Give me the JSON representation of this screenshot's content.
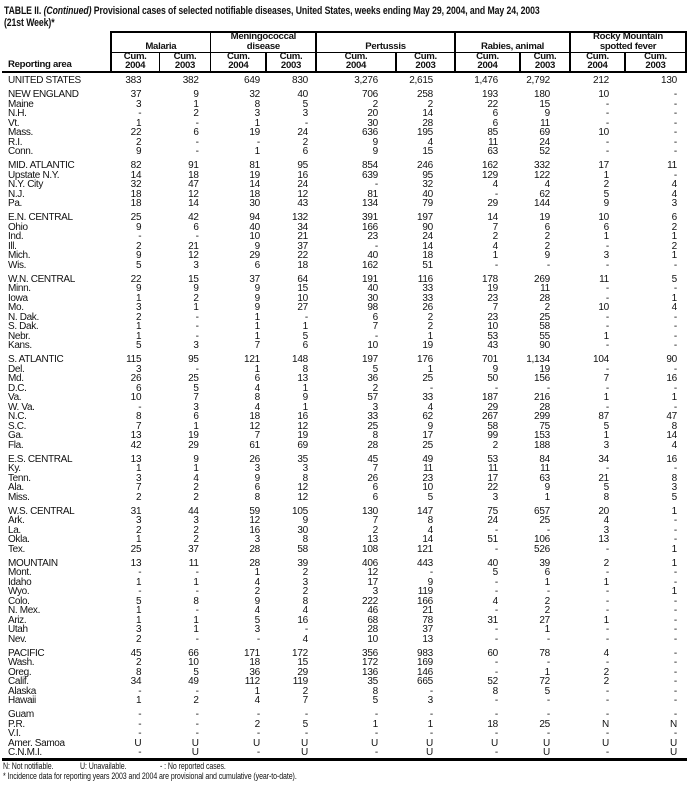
{
  "title": {
    "part1": "TABLE II.",
    "continued": "(Continued)",
    "part2": "Provisional cases of selected notifiable diseases, United States, weeks ending May 29, 2004, and May 24, 2003",
    "line2": "(21st Week)*"
  },
  "header": {
    "reporting_area": "Reporting area",
    "groups": [
      {
        "name_lines": [
          "Malaria"
        ]
      },
      {
        "name_lines": [
          "Meningococcal",
          "disease"
        ]
      },
      {
        "name_lines": [
          "Pertussis"
        ]
      },
      {
        "name_lines": [
          "Rabies, animal"
        ]
      },
      {
        "name_lines": [
          "Rocky Mountain",
          "spotted fever"
        ]
      }
    ],
    "subcolumns": [
      {
        "label": "Cum.",
        "year": "2004"
      },
      {
        "label": "Cum.",
        "year": "2003"
      }
    ]
  },
  "sections": [
    {
      "rows": [
        {
          "area": "UNITED STATES",
          "values": [
            "383",
            "382",
            "649",
            "830",
            "3,276",
            "2,615",
            "1,476",
            "2,792",
            "212",
            "130"
          ]
        }
      ]
    },
    {
      "rows": [
        {
          "area": "NEW ENGLAND",
          "values": [
            "37",
            "9",
            "32",
            "40",
            "706",
            "258",
            "193",
            "180",
            "10",
            "-"
          ]
        },
        {
          "area": "Maine",
          "values": [
            "3",
            "1",
            "8",
            "5",
            "2",
            "2",
            "22",
            "15",
            "-",
            "-"
          ]
        },
        {
          "area": "N.H.",
          "values": [
            "-",
            "2",
            "3",
            "3",
            "20",
            "14",
            "6",
            "9",
            "-",
            "-"
          ]
        },
        {
          "area": "Vt.",
          "values": [
            "1",
            "-",
            "1",
            "-",
            "30",
            "28",
            "6",
            "11",
            "-",
            "-"
          ]
        },
        {
          "area": "Mass.",
          "values": [
            "22",
            "6",
            "19",
            "24",
            "636",
            "195",
            "85",
            "69",
            "10",
            "-"
          ]
        },
        {
          "area": "R.I.",
          "values": [
            "2",
            "-",
            "-",
            "2",
            "9",
            "4",
            "11",
            "24",
            "-",
            "-"
          ]
        },
        {
          "area": "Conn.",
          "values": [
            "9",
            "-",
            "1",
            "6",
            "9",
            "15",
            "63",
            "52",
            "-",
            "-"
          ]
        }
      ]
    },
    {
      "rows": [
        {
          "area": "MID. ATLANTIC",
          "values": [
            "82",
            "91",
            "81",
            "95",
            "854",
            "246",
            "162",
            "332",
            "17",
            "11"
          ]
        },
        {
          "area": "Upstate N.Y.",
          "values": [
            "14",
            "18",
            "19",
            "16",
            "639",
            "95",
            "129",
            "122",
            "1",
            "-"
          ]
        },
        {
          "area": "N.Y. City",
          "values": [
            "32",
            "47",
            "14",
            "24",
            "-",
            "32",
            "4",
            "4",
            "2",
            "4"
          ]
        },
        {
          "area": "N.J.",
          "values": [
            "18",
            "12",
            "18",
            "12",
            "81",
            "40",
            "-",
            "62",
            "5",
            "4"
          ]
        },
        {
          "area": "Pa.",
          "values": [
            "18",
            "14",
            "30",
            "43",
            "134",
            "79",
            "29",
            "144",
            "9",
            "3"
          ]
        }
      ]
    },
    {
      "rows": [
        {
          "area": "E.N. CENTRAL",
          "values": [
            "25",
            "42",
            "94",
            "132",
            "391",
            "197",
            "14",
            "19",
            "10",
            "6"
          ]
        },
        {
          "area": "Ohio",
          "values": [
            "9",
            "6",
            "40",
            "34",
            "166",
            "90",
            "7",
            "6",
            "6",
            "2"
          ]
        },
        {
          "area": "Ind.",
          "values": [
            "-",
            "-",
            "10",
            "21",
            "23",
            "24",
            "2",
            "2",
            "1",
            "1"
          ]
        },
        {
          "area": "Ill.",
          "values": [
            "2",
            "21",
            "9",
            "37",
            "-",
            "14",
            "4",
            "2",
            "-",
            "2"
          ]
        },
        {
          "area": "Mich.",
          "values": [
            "9",
            "12",
            "29",
            "22",
            "40",
            "18",
            "1",
            "9",
            "3",
            "1"
          ]
        },
        {
          "area": "Wis.",
          "values": [
            "5",
            "3",
            "6",
            "18",
            "162",
            "51",
            "-",
            "-",
            "-",
            "-"
          ]
        }
      ]
    },
    {
      "rows": [
        {
          "area": "W.N. CENTRAL",
          "values": [
            "22",
            "15",
            "37",
            "64",
            "191",
            "116",
            "178",
            "269",
            "11",
            "5"
          ]
        },
        {
          "area": "Minn.",
          "values": [
            "9",
            "9",
            "9",
            "15",
            "40",
            "33",
            "19",
            "11",
            "-",
            "-"
          ]
        },
        {
          "area": "Iowa",
          "values": [
            "1",
            "2",
            "9",
            "10",
            "30",
            "33",
            "23",
            "28",
            "-",
            "1"
          ]
        },
        {
          "area": "Mo.",
          "values": [
            "3",
            "1",
            "9",
            "27",
            "98",
            "26",
            "7",
            "2",
            "10",
            "4"
          ]
        },
        {
          "area": "N. Dak.",
          "values": [
            "2",
            "-",
            "1",
            "-",
            "6",
            "2",
            "23",
            "25",
            "-",
            "-"
          ]
        },
        {
          "area": "S. Dak.",
          "values": [
            "1",
            "-",
            "1",
            "1",
            "7",
            "2",
            "10",
            "58",
            "-",
            "-"
          ]
        },
        {
          "area": "Nebr.",
          "values": [
            "1",
            "-",
            "1",
            "5",
            "-",
            "1",
            "53",
            "55",
            "1",
            "-"
          ]
        },
        {
          "area": "Kans.",
          "values": [
            "5",
            "3",
            "7",
            "6",
            "10",
            "19",
            "43",
            "90",
            "-",
            "-"
          ]
        }
      ]
    },
    {
      "rows": [
        {
          "area": "S. ATLANTIC",
          "values": [
            "115",
            "95",
            "121",
            "148",
            "197",
            "176",
            "701",
            "1,134",
            "104",
            "90"
          ]
        },
        {
          "area": "Del.",
          "values": [
            "3",
            "-",
            "1",
            "8",
            "5",
            "1",
            "9",
            "19",
            "-",
            "-"
          ]
        },
        {
          "area": "Md.",
          "values": [
            "26",
            "25",
            "6",
            "13",
            "36",
            "25",
            "50",
            "156",
            "7",
            "16"
          ]
        },
        {
          "area": "D.C.",
          "values": [
            "6",
            "5",
            "4",
            "1",
            "2",
            "-",
            "-",
            "-",
            "-",
            "-"
          ]
        },
        {
          "area": "Va.",
          "values": [
            "10",
            "7",
            "8",
            "9",
            "57",
            "33",
            "187",
            "216",
            "1",
            "1"
          ]
        },
        {
          "area": "W. Va.",
          "values": [
            "-",
            "3",
            "4",
            "1",
            "3",
            "4",
            "29",
            "28",
            "-",
            "-"
          ]
        },
        {
          "area": "N.C.",
          "values": [
            "8",
            "6",
            "18",
            "16",
            "33",
            "62",
            "267",
            "299",
            "87",
            "47"
          ]
        },
        {
          "area": "S.C.",
          "values": [
            "7",
            "1",
            "12",
            "12",
            "25",
            "9",
            "58",
            "75",
            "5",
            "8"
          ]
        },
        {
          "area": "Ga.",
          "values": [
            "13",
            "19",
            "7",
            "19",
            "8",
            "17",
            "99",
            "153",
            "1",
            "14"
          ]
        },
        {
          "area": "Fla.",
          "values": [
            "42",
            "29",
            "61",
            "69",
            "28",
            "25",
            "2",
            "188",
            "3",
            "4"
          ]
        }
      ]
    },
    {
      "rows": [
        {
          "area": "E.S. CENTRAL",
          "values": [
            "13",
            "9",
            "26",
            "35",
            "45",
            "49",
            "53",
            "84",
            "34",
            "16"
          ]
        },
        {
          "area": "Ky.",
          "values": [
            "1",
            "1",
            "3",
            "3",
            "7",
            "11",
            "11",
            "11",
            "-",
            "-"
          ]
        },
        {
          "area": "Tenn.",
          "values": [
            "3",
            "4",
            "9",
            "8",
            "26",
            "23",
            "17",
            "63",
            "21",
            "8"
          ]
        },
        {
          "area": "Ala.",
          "values": [
            "7",
            "2",
            "6",
            "12",
            "6",
            "10",
            "22",
            "9",
            "5",
            "3"
          ]
        },
        {
          "area": "Miss.",
          "values": [
            "2",
            "2",
            "8",
            "12",
            "6",
            "5",
            "3",
            "1",
            "8",
            "5"
          ]
        }
      ]
    },
    {
      "rows": [
        {
          "area": "W.S. CENTRAL",
          "values": [
            "31",
            "44",
            "59",
            "105",
            "130",
            "147",
            "75",
            "657",
            "20",
            "1"
          ]
        },
        {
          "area": "Ark.",
          "values": [
            "3",
            "3",
            "12",
            "9",
            "7",
            "8",
            "24",
            "25",
            "4",
            "-"
          ]
        },
        {
          "area": "La.",
          "values": [
            "2",
            "2",
            "16",
            "30",
            "2",
            "4",
            "-",
            "-",
            "3",
            "-"
          ]
        },
        {
          "area": "Okla.",
          "values": [
            "1",
            "2",
            "3",
            "8",
            "13",
            "14",
            "51",
            "106",
            "13",
            "-"
          ]
        },
        {
          "area": "Tex.",
          "values": [
            "25",
            "37",
            "28",
            "58",
            "108",
            "121",
            "-",
            "526",
            "-",
            "1"
          ]
        }
      ]
    },
    {
      "rows": [
        {
          "area": "MOUNTAIN",
          "values": [
            "13",
            "11",
            "28",
            "39",
            "406",
            "443",
            "40",
            "39",
            "2",
            "1"
          ]
        },
        {
          "area": "Mont.",
          "values": [
            "-",
            "-",
            "1",
            "2",
            "12",
            "-",
            "5",
            "6",
            "-",
            "-"
          ]
        },
        {
          "area": "Idaho",
          "values": [
            "1",
            "1",
            "4",
            "3",
            "17",
            "9",
            "-",
            "1",
            "1",
            "-"
          ]
        },
        {
          "area": "Wyo.",
          "values": [
            "-",
            "-",
            "2",
            "2",
            "3",
            "119",
            "-",
            "-",
            "-",
            "1"
          ]
        },
        {
          "area": "Colo.",
          "values": [
            "5",
            "8",
            "9",
            "8",
            "222",
            "166",
            "4",
            "2",
            "-",
            "-"
          ]
        },
        {
          "area": "N. Mex.",
          "values": [
            "1",
            "-",
            "4",
            "4",
            "46",
            "21",
            "-",
            "2",
            "-",
            "-"
          ]
        },
        {
          "area": "Ariz.",
          "values": [
            "1",
            "1",
            "5",
            "16",
            "68",
            "78",
            "31",
            "27",
            "1",
            "-"
          ]
        },
        {
          "area": "Utah",
          "values": [
            "3",
            "1",
            "3",
            "-",
            "28",
            "37",
            "-",
            "1",
            "-",
            "-"
          ]
        },
        {
          "area": "Nev.",
          "values": [
            "2",
            "-",
            "-",
            "4",
            "10",
            "13",
            "-",
            "-",
            "-",
            "-"
          ]
        }
      ]
    },
    {
      "rows": [
        {
          "area": "PACIFIC",
          "values": [
            "45",
            "66",
            "171",
            "172",
            "356",
            "983",
            "60",
            "78",
            "4",
            "-"
          ]
        },
        {
          "area": "Wash.",
          "values": [
            "2",
            "10",
            "18",
            "15",
            "172",
            "169",
            "-",
            "-",
            "-",
            "-"
          ]
        },
        {
          "area": "Oreg.",
          "values": [
            "8",
            "5",
            "36",
            "29",
            "136",
            "146",
            "-",
            "1",
            "2",
            "-"
          ]
        },
        {
          "area": "Calif.",
          "values": [
            "34",
            "49",
            "112",
            "119",
            "35",
            "665",
            "52",
            "72",
            "2",
            "-"
          ]
        },
        {
          "area": "Alaska",
          "values": [
            "-",
            "-",
            "1",
            "2",
            "8",
            "-",
            "8",
            "5",
            "-",
            "-"
          ]
        },
        {
          "area": "Hawaii",
          "values": [
            "1",
            "2",
            "4",
            "7",
            "5",
            "3",
            "-",
            "-",
            "-",
            "-"
          ]
        }
      ]
    },
    {
      "rows": [
        {
          "area": "Guam",
          "values": [
            "-",
            "-",
            "-",
            "-",
            "-",
            "-",
            "-",
            "-",
            "-",
            "-"
          ]
        },
        {
          "area": "P.R.",
          "values": [
            "-",
            "-",
            "2",
            "5",
            "1",
            "1",
            "18",
            "25",
            "N",
            "N"
          ]
        },
        {
          "area": "V.I.",
          "values": [
            "-",
            "-",
            "-",
            "-",
            "-",
            "-",
            "-",
            "-",
            "-",
            "-"
          ]
        },
        {
          "area": "Amer. Samoa",
          "values": [
            "U",
            "U",
            "U",
            "U",
            "U",
            "U",
            "U",
            "U",
            "U",
            "U"
          ]
        },
        {
          "area": "C.N.M.I.",
          "values": [
            "-",
            "U",
            "-",
            "U",
            "-",
            "U",
            "-",
            "U",
            "-",
            "U"
          ]
        }
      ]
    }
  ],
  "footnotes": {
    "legend": [
      "N: Not notifiable.",
      "U: Unavailable.",
      "- : No reported cases."
    ],
    "note": "* Incidence data for reporting years 2003 and 2004 are provisional and cumulative (year-to-date)."
  }
}
